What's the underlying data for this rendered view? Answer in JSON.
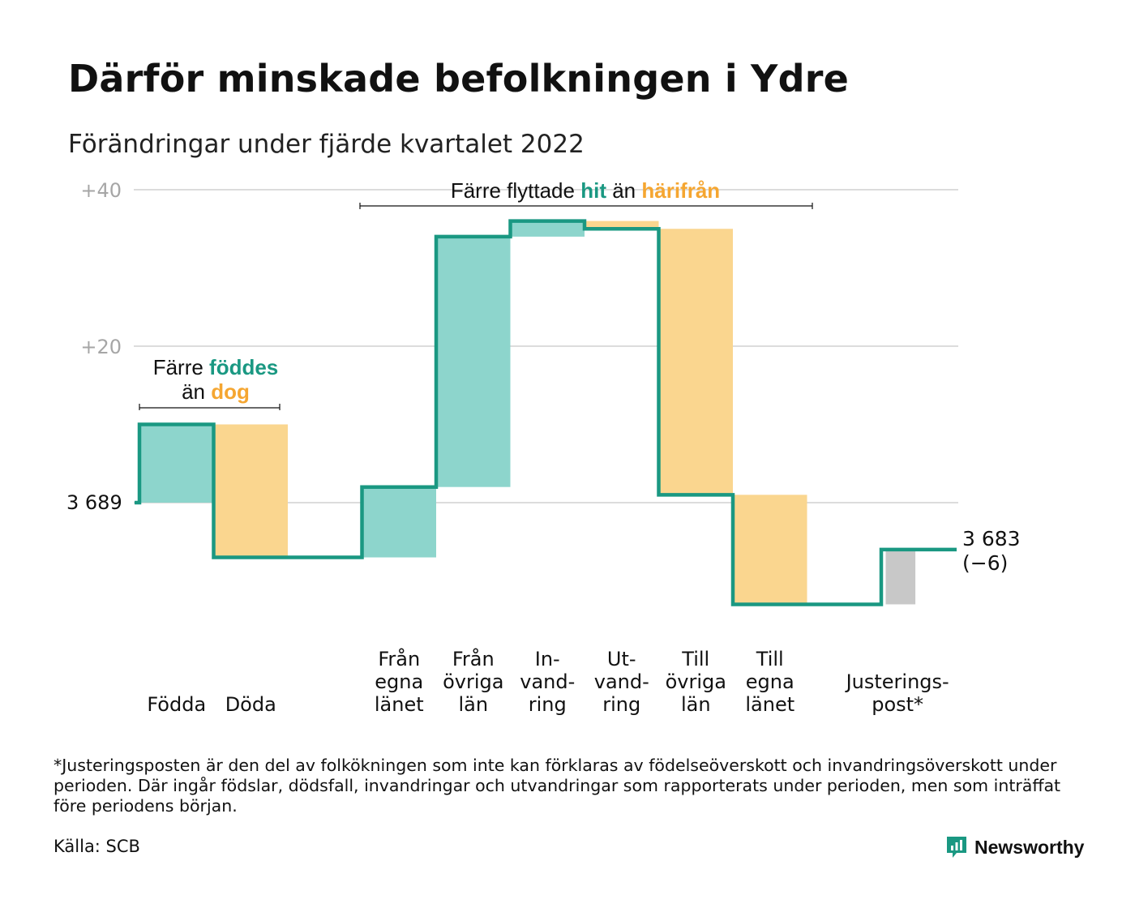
{
  "title": "Därför minskade befolkningen i Ydre",
  "subtitle": "Förändringar under fjärde kvartalet 2022",
  "colors": {
    "teal": "#1a9882",
    "teal_fill": "#8dd5cc",
    "orange": "#f5a631",
    "orange_fill": "#fad68f",
    "gray_fill": "#c8c8c8",
    "grid": "#dcdcdc"
  },
  "chart_data": {
    "type": "waterfall",
    "start": {
      "label": "3 689",
      "value": 3689
    },
    "end": {
      "label": "3 683",
      "change_label": "(−6)",
      "value": 3683
    },
    "yaxis": {
      "ticks": [
        {
          "value": 20,
          "label": "+20"
        },
        {
          "value": 40,
          "label": "+40"
        }
      ],
      "range": [
        -15,
        40
      ]
    },
    "steps": [
      {
        "label": [
          "Födda"
        ],
        "change": 10,
        "type": "in"
      },
      {
        "label": [
          "Döda"
        ],
        "change": -17,
        "type": "out"
      },
      {
        "label": [],
        "change": 0,
        "type": "gap"
      },
      {
        "label": [
          "Från",
          "egna",
          "länet"
        ],
        "change": 9,
        "type": "in"
      },
      {
        "label": [
          "Från",
          "övriga",
          "län"
        ],
        "change": 32,
        "type": "in"
      },
      {
        "label": [
          "In-",
          "vand-",
          "ring"
        ],
        "change": 2,
        "type": "in"
      },
      {
        "label": [
          "Ut-",
          "vand-",
          "ring"
        ],
        "change": -1,
        "type": "out"
      },
      {
        "label": [
          "Till",
          "övriga",
          "län"
        ],
        "change": -34,
        "type": "out"
      },
      {
        "label": [
          "Till",
          "egna",
          "länet"
        ],
        "change": -14,
        "type": "out"
      },
      {
        "label": [],
        "change": 0,
        "type": "gap"
      },
      {
        "label": [
          "Justerings-",
          "post*"
        ],
        "change": 7,
        "type": "adjust"
      }
    ],
    "annotations": {
      "natural": {
        "prefix": "Färre ",
        "highlight1": "föddes",
        "middle": "än ",
        "highlight2": "dog"
      },
      "migration": {
        "prefix": "Färre flyttade ",
        "highlight1": "hit",
        "middle": " än ",
        "highlight2": "härifrån"
      }
    }
  },
  "footnote": "*Justeringsposten är den del av folkökningen som inte kan förklaras av födelseöverskott och invandringsöverskott under perioden. Där ingår födslar, dödsfall, invandringar och utvandringar som rapporterats under perioden, men som inträffat före periodens början.",
  "source": "Källa: SCB",
  "brand": {
    "name": "Newsworthy",
    "logo_icon": "bar-chart-speech-bubble-icon"
  }
}
